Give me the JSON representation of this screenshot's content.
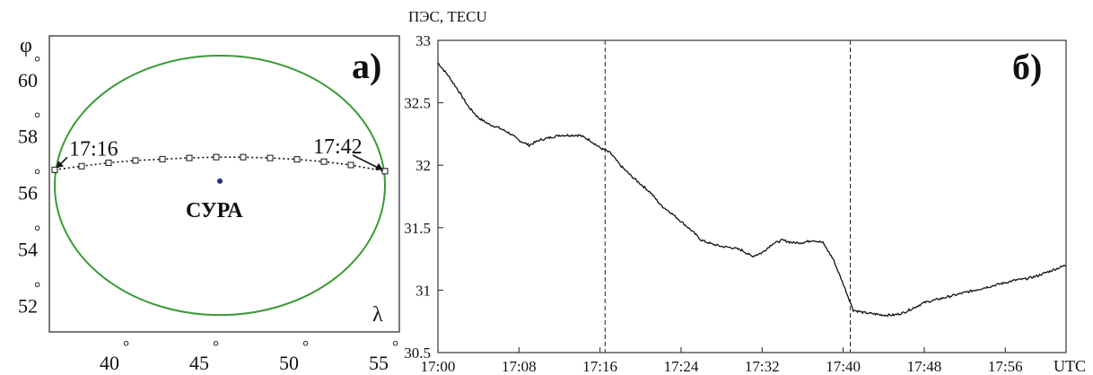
{
  "chart_data": [
    {
      "type": "scatter",
      "panel_label": "а)",
      "x_axis_symbol": "λ",
      "y_axis_symbol": "φ",
      "degree_mark": "°",
      "xticks": [
        40,
        45,
        50,
        55
      ],
      "yticks": [
        52,
        54,
        56,
        58,
        60
      ],
      "xlim": [
        36.5,
        56
      ],
      "ylim": [
        50.8,
        61.3
      ],
      "station": {
        "label": "СУРА",
        "lon": 46.0,
        "lat": 56.15
      },
      "circle": {
        "center_lon": 46.0,
        "center_lat": 56.0,
        "radius_lon": 9.2,
        "radius_lat": 4.6,
        "color": "#3a9a35"
      },
      "track": {
        "color": "#111111",
        "start_label": "17:16",
        "end_label": "17:42",
        "points": [
          {
            "lon": 36.8,
            "lat": 56.55
          },
          {
            "lon": 38.3,
            "lat": 56.68
          },
          {
            "lon": 39.8,
            "lat": 56.8
          },
          {
            "lon": 41.3,
            "lat": 56.88
          },
          {
            "lon": 42.8,
            "lat": 56.93
          },
          {
            "lon": 44.3,
            "lat": 56.97
          },
          {
            "lon": 45.8,
            "lat": 57.0
          },
          {
            "lon": 47.3,
            "lat": 57.0
          },
          {
            "lon": 48.8,
            "lat": 56.97
          },
          {
            "lon": 50.3,
            "lat": 56.92
          },
          {
            "lon": 51.8,
            "lat": 56.84
          },
          {
            "lon": 53.3,
            "lat": 56.72
          },
          {
            "lon": 55.2,
            "lat": 56.5
          }
        ]
      }
    },
    {
      "type": "line",
      "panel_label": "б)",
      "ylabel": "ПЭС, TECU",
      "xlabel": "UTC",
      "xticks": [
        "17:00",
        "17:08",
        "17:16",
        "17:24",
        "17:32",
        "17:40",
        "17:48",
        "17:56"
      ],
      "yticks": [
        "30.5",
        "31",
        "31.5",
        "32",
        "32.5",
        "33"
      ],
      "ylim": [
        30.5,
        33
      ],
      "xlim_minutes": [
        0,
        62
      ],
      "vlines_minutes": [
        16.5,
        40.7
      ],
      "line_color": "#111111",
      "series": [
        {
          "x": [
            0,
            1,
            2,
            3,
            4,
            5,
            6,
            7,
            8,
            9,
            10,
            11,
            12,
            13,
            14,
            15,
            16,
            17,
            18,
            19,
            20,
            21,
            22,
            23,
            24,
            25,
            26,
            27,
            28,
            29,
            30,
            31,
            32,
            33,
            34,
            35,
            36,
            37,
            38,
            39,
            40,
            41,
            42,
            43,
            44,
            45,
            46,
            47,
            48,
            49,
            50,
            51,
            52,
            53,
            54,
            55,
            56,
            57,
            58,
            59,
            60,
            61,
            62
          ],
          "y": [
            32.82,
            32.72,
            32.6,
            32.47,
            32.38,
            32.33,
            32.3,
            32.26,
            32.2,
            32.16,
            32.2,
            32.22,
            32.24,
            32.24,
            32.24,
            32.2,
            32.14,
            32.1,
            32.0,
            31.92,
            31.85,
            31.78,
            31.68,
            31.62,
            31.55,
            31.48,
            31.4,
            31.37,
            31.35,
            31.34,
            31.32,
            31.27,
            31.3,
            31.37,
            31.4,
            31.38,
            31.38,
            31.4,
            31.38,
            31.25,
            31.05,
            30.84,
            30.82,
            30.81,
            30.8,
            30.8,
            30.82,
            30.86,
            30.9,
            30.92,
            30.94,
            30.96,
            30.98,
            31.0,
            31.02,
            31.04,
            31.06,
            31.08,
            31.09,
            31.11,
            31.14,
            31.17,
            31.2
          ]
        }
      ]
    }
  ]
}
